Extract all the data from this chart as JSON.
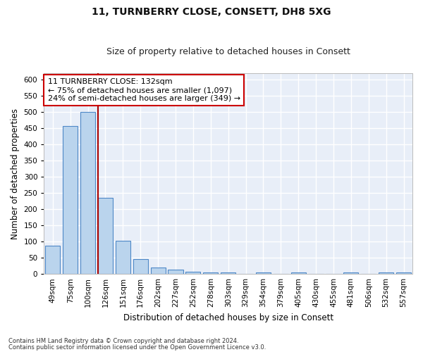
{
  "title": "11, TURNBERRY CLOSE, CONSETT, DH8 5XG",
  "subtitle": "Size of property relative to detached houses in Consett",
  "xlabel": "Distribution of detached houses by size in Consett",
  "ylabel": "Number of detached properties",
  "bar_labels": [
    "49sqm",
    "75sqm",
    "100sqm",
    "126sqm",
    "151sqm",
    "176sqm",
    "202sqm",
    "227sqm",
    "252sqm",
    "278sqm",
    "303sqm",
    "329sqm",
    "354sqm",
    "379sqm",
    "405sqm",
    "430sqm",
    "455sqm",
    "481sqm",
    "506sqm",
    "532sqm",
    "557sqm"
  ],
  "bar_values": [
    88,
    458,
    500,
    235,
    103,
    47,
    20,
    13,
    8,
    5,
    5,
    0,
    5,
    0,
    5,
    0,
    0,
    5,
    0,
    5,
    5
  ],
  "bar_color": "#bad4ed",
  "bar_edge_color": "#4e88c7",
  "ylim": [
    0,
    620
  ],
  "yticks": [
    0,
    50,
    100,
    150,
    200,
    250,
    300,
    350,
    400,
    450,
    500,
    550,
    600
  ],
  "vline_color": "#aa0000",
  "annotation_line1": "11 TURNBERRY CLOSE: 132sqm",
  "annotation_line2": "← 75% of detached houses are smaller (1,097)",
  "annotation_line3": "24% of semi-detached houses are larger (349) →",
  "annotation_box_color": "#ffffff",
  "annotation_box_edge": "#cc0000",
  "footer_line1": "Contains HM Land Registry data © Crown copyright and database right 2024.",
  "footer_line2": "Contains public sector information licensed under the Open Government Licence v3.0.",
  "bg_color": "#e8eef8",
  "grid_color": "#ffffff",
  "title_fontsize": 10,
  "subtitle_fontsize": 9,
  "tick_fontsize": 7.5,
  "ylabel_fontsize": 8.5,
  "xlabel_fontsize": 8.5,
  "annot_fontsize": 8,
  "footer_fontsize": 6
}
